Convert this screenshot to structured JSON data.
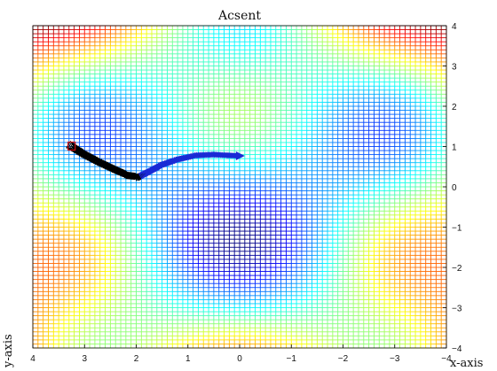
{
  "chart_data": {
    "type": "mesh",
    "title": "Acsent",
    "xlabel": "x-axis",
    "ylabel": "y-axis",
    "xlim": [
      4,
      -4
    ],
    "ylim": [
      -4,
      4
    ],
    "x_direction": "reversed",
    "x_ticks": [
      "4",
      "3",
      "2",
      "1",
      "0",
      "−1",
      "−2",
      "−3",
      "−4"
    ],
    "y_ticks": [
      "−4",
      "−3",
      "−2",
      "−1",
      "0",
      "1",
      "2",
      "3",
      "4"
    ],
    "y_axis_side": "right",
    "grid_resolution": 0.1,
    "colormap": "jet",
    "surface": "f(x,y) = cos(x)·sin(y) + 0.08·(x² + y²)",
    "path": {
      "name": "ascent path",
      "marker_color": "#000000",
      "end_color": "#1a2bd6",
      "start_marker_color": "#d01010",
      "points": [
        {
          "x": 3.25,
          "y": 1.0
        },
        {
          "x": 3.0,
          "y": 0.8
        },
        {
          "x": 2.7,
          "y": 0.6
        },
        {
          "x": 2.4,
          "y": 0.42
        },
        {
          "x": 2.15,
          "y": 0.28
        },
        {
          "x": 1.95,
          "y": 0.25
        },
        {
          "x": 1.75,
          "y": 0.38
        },
        {
          "x": 1.5,
          "y": 0.55
        },
        {
          "x": 1.2,
          "y": 0.68
        },
        {
          "x": 0.85,
          "y": 0.78
        },
        {
          "x": 0.5,
          "y": 0.8
        },
        {
          "x": 0.2,
          "y": 0.78
        },
        {
          "x": 0.02,
          "y": 0.77
        }
      ]
    }
  }
}
